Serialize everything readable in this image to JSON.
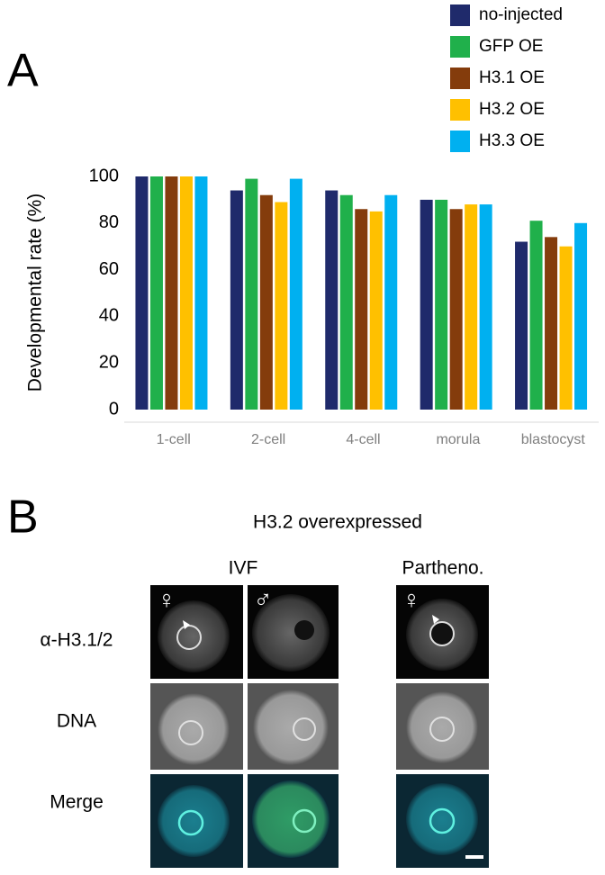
{
  "chart_data": {
    "type": "bar",
    "panel_label": "A",
    "ylabel": "Developmental rate (%)",
    "categories": [
      "1-cell",
      "2-cell",
      "4-cell",
      "morula",
      "blastocyst"
    ],
    "series": [
      {
        "name": "no-injected",
        "color": "#1f2a6b",
        "values": [
          100,
          94,
          94,
          90,
          72
        ]
      },
      {
        "name": "GFP OE",
        "color": "#20b04b",
        "values": [
          100,
          99,
          92,
          90,
          81
        ]
      },
      {
        "name": "H3.1 OE",
        "color": "#843c0c",
        "values": [
          100,
          92,
          86,
          86,
          74
        ]
      },
      {
        "name": "H3.2 OE",
        "color": "#ffc000",
        "values": [
          100,
          89,
          85,
          88,
          70
        ]
      },
      {
        "name": "H3.3 OE",
        "color": "#00b0f0",
        "values": [
          100,
          99,
          92,
          88,
          80
        ]
      }
    ],
    "ylim": [
      0,
      100
    ],
    "yticks": [
      0,
      20,
      40,
      60,
      80,
      100
    ],
    "grid": false,
    "legend": "top-right"
  },
  "panel_b": {
    "panel_label": "B",
    "title": "H3.2 overexpressed",
    "columns": [
      "IVF",
      "Partheno."
    ],
    "pronuclei": [
      "♀",
      "♂",
      "♀"
    ],
    "rows": [
      "α-H3.1/2",
      "DNA",
      "Merge"
    ]
  }
}
